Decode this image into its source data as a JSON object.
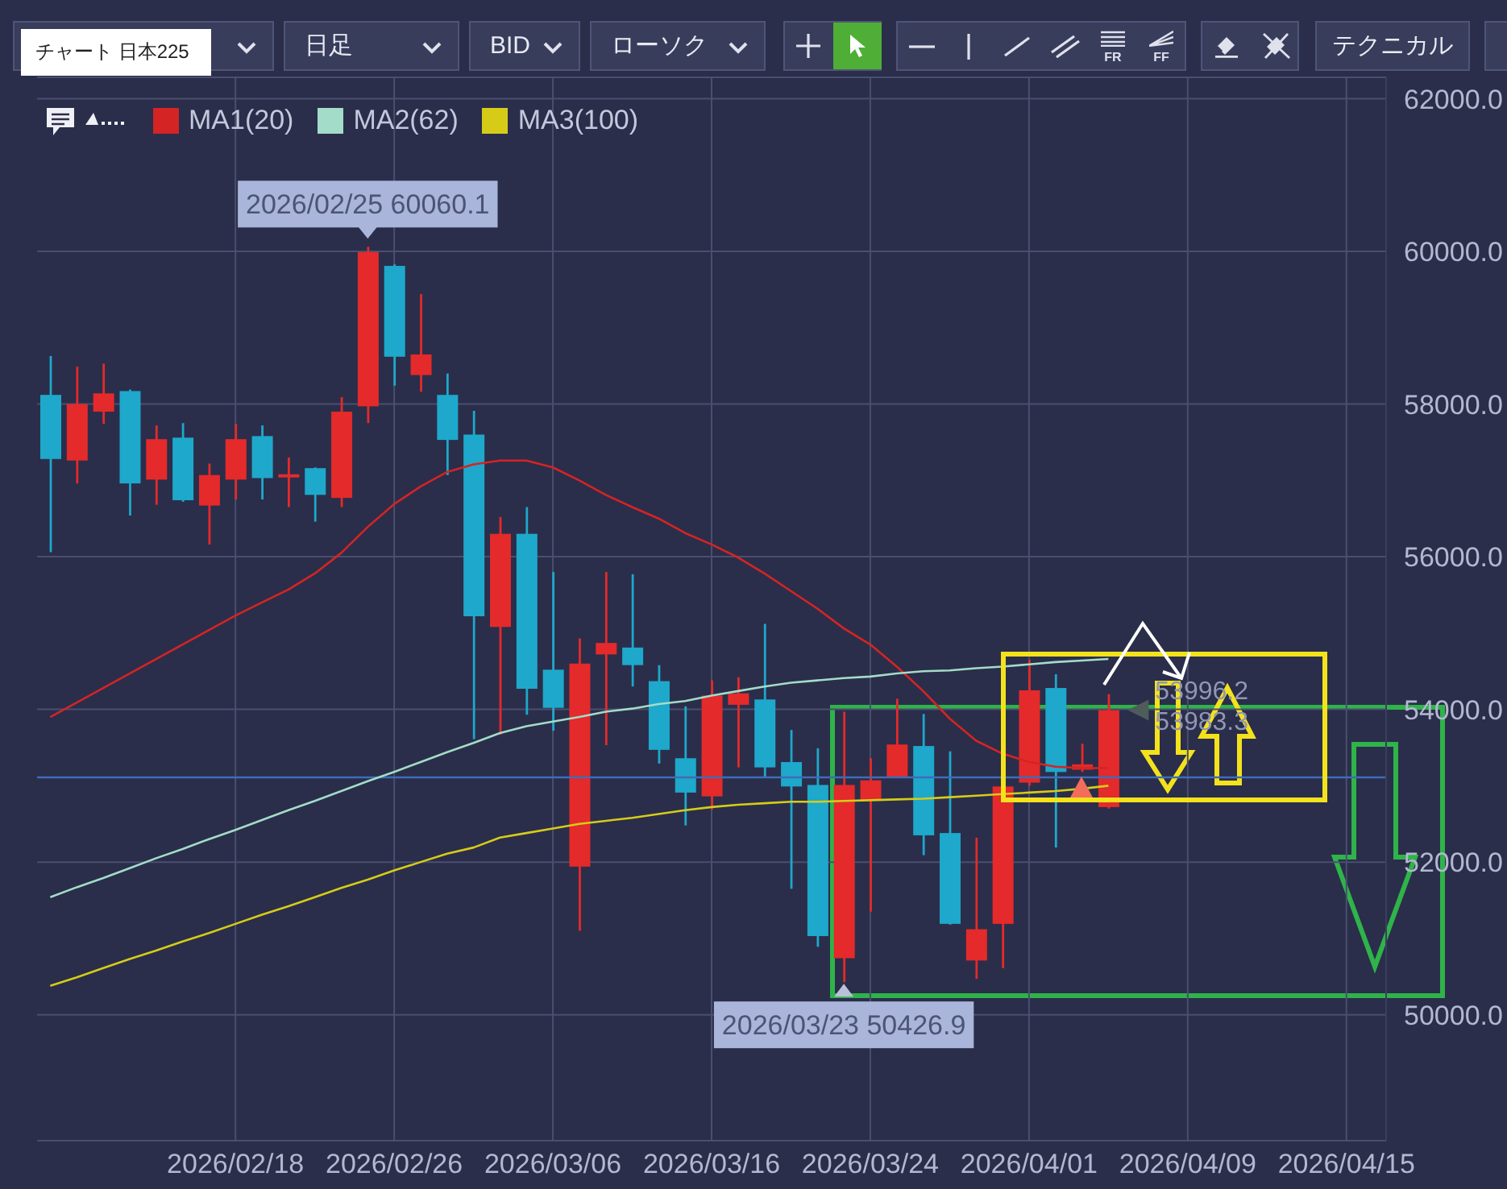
{
  "chart_data": {
    "type": "candlestick",
    "title": "チャート 日本225",
    "categories": [
      null,
      null,
      null,
      null,
      null,
      null,
      null,
      "2026/02/18",
      null,
      null,
      null,
      null,
      null,
      "2026/02/26",
      null,
      null,
      null,
      null,
      null,
      "2026/03/06",
      null,
      null,
      null,
      null,
      null,
      "2026/03/16",
      null,
      null,
      null,
      null,
      null,
      "2026/03/24",
      null,
      null,
      null,
      null,
      null,
      "2026/04/01",
      null,
      null,
      null,
      null,
      null,
      "2026/04/09",
      null,
      null,
      null,
      null,
      null,
      "2026/04/15",
      null
    ],
    "ohlc": [
      [
        58120,
        58630,
        56060,
        57280
      ],
      [
        57260,
        58490,
        56960,
        58000
      ],
      [
        57900,
        58530,
        57740,
        58140
      ],
      [
        58170,
        58190,
        56540,
        56960
      ],
      [
        57010,
        57720,
        56680,
        57540
      ],
      [
        57560,
        57750,
        56720,
        56740
      ],
      [
        56670,
        57220,
        56160,
        57070
      ],
      [
        57010,
        57740,
        56750,
        57540
      ],
      [
        57580,
        57720,
        56750,
        57030
      ],
      [
        57040,
        57300,
        56650,
        57080
      ],
      [
        57160,
        57170,
        56460,
        56810
      ],
      [
        56770,
        58090,
        56650,
        57900
      ],
      [
        57970,
        60060.1,
        57750,
        59990
      ],
      [
        59810,
        59830,
        58240,
        58620
      ],
      [
        58380,
        59440,
        58160,
        58650
      ],
      [
        58120,
        58400,
        57070,
        57530
      ],
      [
        57600,
        57910,
        53610,
        55220
      ],
      [
        55080,
        56520,
        53670,
        56300
      ],
      [
        56300,
        56650,
        53930,
        54270
      ],
      [
        54520,
        55800,
        53720,
        54020
      ],
      [
        51940,
        54930,
        51100,
        54600
      ],
      [
        54720,
        55800,
        53530,
        54870
      ],
      [
        54810,
        55770,
        54300,
        54580
      ],
      [
        54370,
        54580,
        53290,
        53470
      ],
      [
        53360,
        54040,
        52480,
        52910
      ],
      [
        52860,
        54380,
        52690,
        54180
      ],
      [
        54060,
        54420,
        53240,
        54210
      ],
      [
        54130,
        55120,
        53120,
        53240
      ],
      [
        53310,
        53730,
        51650,
        52990
      ],
      [
        53010,
        53490,
        50890,
        51030
      ],
      [
        50740,
        53970,
        50426.9,
        53010
      ],
      [
        52810,
        53360,
        51350,
        53070
      ],
      [
        53120,
        54140,
        53120,
        53540
      ],
      [
        53520,
        53940,
        52090,
        52350
      ],
      [
        52380,
        53450,
        51180,
        51190
      ],
      [
        50710,
        52320,
        50470,
        51120
      ],
      [
        51190,
        53010,
        50610,
        52990
      ],
      [
        53040,
        54650,
        53000,
        54250
      ],
      [
        54280,
        54460,
        52190,
        53180
      ],
      [
        53210,
        53550,
        53180,
        53280
      ],
      [
        52720,
        54200,
        52700,
        53990
      ],
      null,
      null,
      null,
      null,
      null,
      null,
      null,
      null,
      null,
      null
    ],
    "colors": [
      "#1ea8cb",
      "#e42a2a",
      "#e42a2a",
      "#1ea8cb",
      "#e42a2a",
      "#1ea8cb",
      "#e42a2a",
      "#e42a2a",
      "#1ea8cb",
      "#e42a2a",
      "#1ea8cb",
      "#e42a2a",
      "#e42a2a",
      "#1ea8cb",
      "#e42a2a",
      "#1ea8cb",
      "#1ea8cb",
      "#e42a2a",
      "#1ea8cb",
      "#1ea8cb",
      "#e42a2a",
      "#e42a2a",
      "#1ea8cb",
      "#1ea8cb",
      "#1ea8cb",
      "#e42a2a",
      "#e42a2a",
      "#1ea8cb",
      "#1ea8cb",
      "#1ea8cb",
      "#e42a2a",
      "#e42a2a",
      "#e42a2a",
      "#1ea8cb",
      "#1ea8cb",
      "#e42a2a",
      "#e42a2a",
      "#e42a2a",
      "#1ea8cb",
      "#e42a2a",
      "#e42a2a",
      null,
      null,
      null,
      null,
      null,
      null,
      null,
      null,
      null,
      null
    ],
    "series": [
      {
        "name": "MA1(20)",
        "type": "line",
        "color": "#d42424",
        "values": [
          53900,
          54090,
          54280,
          54470,
          54660,
          54850,
          55040,
          55230,
          55400,
          55570,
          55780,
          56050,
          56390,
          56690,
          56920,
          57110,
          57210,
          57260,
          57260,
          57170,
          57000,
          56810,
          56650,
          56500,
          56310,
          56160,
          55990,
          55780,
          55550,
          55320,
          55060,
          54850,
          54560,
          54240,
          53880,
          53590,
          53420,
          53310,
          53250,
          53230,
          53230,
          null,
          null,
          null,
          null,
          null,
          null,
          null,
          null,
          null,
          null
        ]
      },
      {
        "name": "MA2(62)",
        "type": "line",
        "color": "#a3dcc9",
        "values": [
          51540,
          51670,
          51790,
          51920,
          52050,
          52170,
          52300,
          52420,
          52550,
          52680,
          52800,
          52930,
          53060,
          53180,
          53310,
          53440,
          53560,
          53690,
          53780,
          53840,
          53900,
          53970,
          54010,
          54070,
          54110,
          54180,
          54240,
          54300,
          54350,
          54380,
          54410,
          54430,
          54470,
          54500,
          54510,
          54540,
          54560,
          54590,
          54620,
          54640,
          54660,
          null,
          null,
          null,
          null,
          null,
          null,
          null,
          null,
          null,
          null
        ]
      },
      {
        "name": "MA3(100)",
        "type": "line",
        "color": "#d6cc18",
        "values": [
          50380,
          50490,
          50610,
          50730,
          50840,
          50960,
          51070,
          51190,
          51310,
          51420,
          51540,
          51660,
          51770,
          51890,
          52000,
          52110,
          52190,
          52320,
          52380,
          52440,
          52500,
          52540,
          52580,
          52630,
          52680,
          52720,
          52750,
          52770,
          52790,
          52790,
          52800,
          52810,
          52820,
          52830,
          52850,
          52870,
          52890,
          52910,
          52930,
          52960,
          53000,
          null,
          null,
          null,
          null,
          null,
          null,
          null,
          null,
          null,
          null
        ]
      }
    ],
    "ylim": [
      48350,
      62280
    ],
    "yticks": [
      {
        "value": 50000,
        "label": "50000.0"
      },
      {
        "value": 52000,
        "label": "52000.0"
      },
      {
        "value": 54000,
        "label": "54000.0"
      },
      {
        "value": 56000,
        "label": "56000.0"
      },
      {
        "value": 58000,
        "label": "58000.0"
      },
      {
        "value": 60000,
        "label": "60000.0"
      },
      {
        "value": 62000,
        "label": "62000.0"
      }
    ],
    "grid": true,
    "legend": "top left",
    "ref_lines": [
      {
        "axis": "y",
        "value": 53110,
        "color": "#3f6cb8"
      }
    ],
    "annotations": [
      "日足",
      "BID",
      "ローソク",
      "テクニカル",
      "FR",
      "FF",
      {
        "text": "2026/02/25 60060.1",
        "y": 60060.1
      },
      {
        "text": "2026/03/23 50426.9",
        "y": 50426.9
      },
      "53996.2",
      "53983.3"
    ]
  }
}
